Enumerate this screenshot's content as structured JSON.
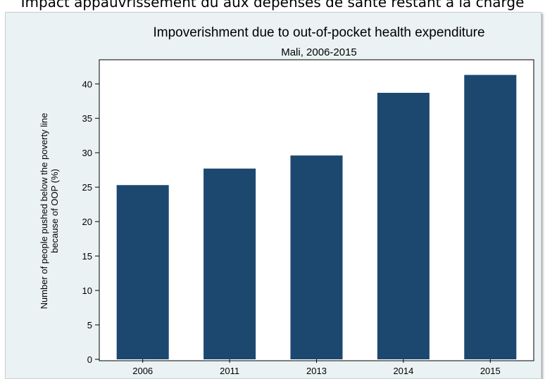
{
  "page": {
    "top_caption": "Impact appauvrissement dû aux dépenses de santé restant à la charge"
  },
  "chart_data": {
    "type": "bar",
    "title": "Impoverishment due to out-of-pocket health expenditure",
    "subtitle": "Mali, 2006-2015",
    "ylabel_line1": "Number of people pushed below the poverty line",
    "ylabel_line2": "because of OOP (%)",
    "xlabel": "",
    "categories": [
      "2006",
      "2011",
      "2013",
      "2014",
      "2015"
    ],
    "values": [
      25.3,
      27.7,
      29.6,
      38.7,
      41.3
    ],
    "ylim": [
      0,
      43.5
    ],
    "yticks": [
      0,
      5,
      10,
      15,
      20,
      25,
      30,
      35,
      40
    ],
    "grid": false,
    "legend": "none",
    "colors": {
      "bar": "#1c4870",
      "plot_bg": "#ffffff",
      "outer_bg": "#eaf2f3"
    }
  }
}
